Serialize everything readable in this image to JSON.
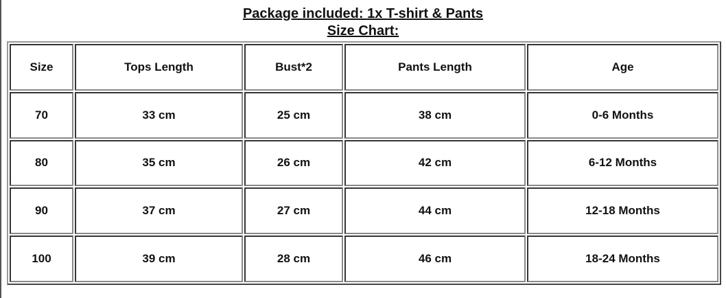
{
  "title": "Package included: 1x T-shirt & Pants",
  "subtitle": "Size Chart:",
  "table": {
    "headers": [
      "Size",
      "Tops Length",
      "Bust*2",
      "Pants Length",
      "Age"
    ],
    "rows": [
      [
        "70",
        "33 cm",
        "25 cm",
        "38 cm",
        "0-6 Months"
      ],
      [
        "80",
        "35 cm",
        "26 cm",
        "42 cm",
        "6-12 Months"
      ],
      [
        "90",
        "37 cm",
        "27 cm",
        "44 cm",
        "12-18 Months"
      ],
      [
        "100",
        "39 cm",
        "28 cm",
        "46 cm",
        "18-24 Months"
      ]
    ]
  }
}
